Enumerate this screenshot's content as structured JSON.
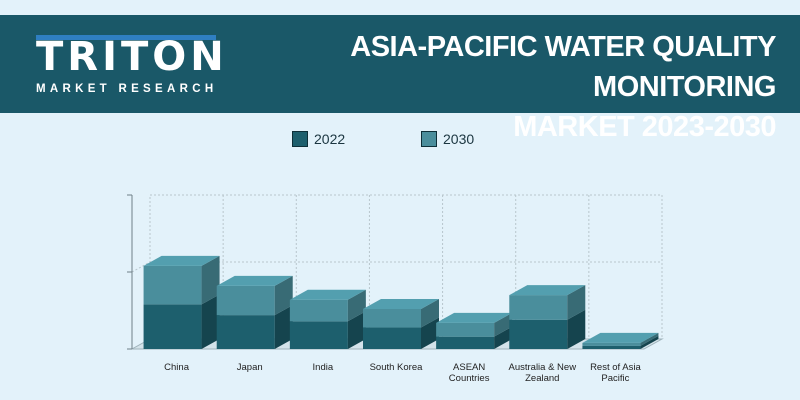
{
  "brand": {
    "logo_text": "TRITON",
    "logo_sub": "MARKET RESEARCH"
  },
  "title_lines": [
    "ASIA-PACIFIC WATER QUALITY MONITORING",
    "MARKET 2023-2030"
  ],
  "colors": {
    "header_bg": "#1a5868",
    "page_bg": "#e3f2fa",
    "series_2022": "#1d5f6d",
    "series_2030": "#4a8e9c"
  },
  "chart_data": {
    "type": "bar",
    "stacked": true,
    "three_d": true,
    "title": "ASIA-PACIFIC WATER QUALITY MONITORING MARKET 2023-2030",
    "xlabel": "",
    "ylabel": "",
    "ylim": [
      0,
      100
    ],
    "grid": true,
    "legend_position": "top-center",
    "categories": [
      "China",
      "Japan",
      "India",
      "South Korea",
      "ASEAN Countries",
      "Australia & New Zealand",
      "Rest of Asia Pacific"
    ],
    "category_label_lines": [
      [
        "China"
      ],
      [
        "Japan"
      ],
      [
        "India"
      ],
      [
        "South Korea"
      ],
      [
        "ASEAN",
        "Countries"
      ],
      [
        "Australia & New",
        "Zealand"
      ],
      [
        "Rest of Asia",
        "Pacific"
      ]
    ],
    "series": [
      {
        "name": "2022",
        "color": "#1d5f6d",
        "values": [
          29,
          22,
          18,
          14,
          8,
          19,
          2
        ]
      },
      {
        "name": "2030",
        "color": "#4a8e9c",
        "values": [
          54,
          41,
          32,
          26,
          17,
          35,
          4
        ]
      }
    ]
  }
}
